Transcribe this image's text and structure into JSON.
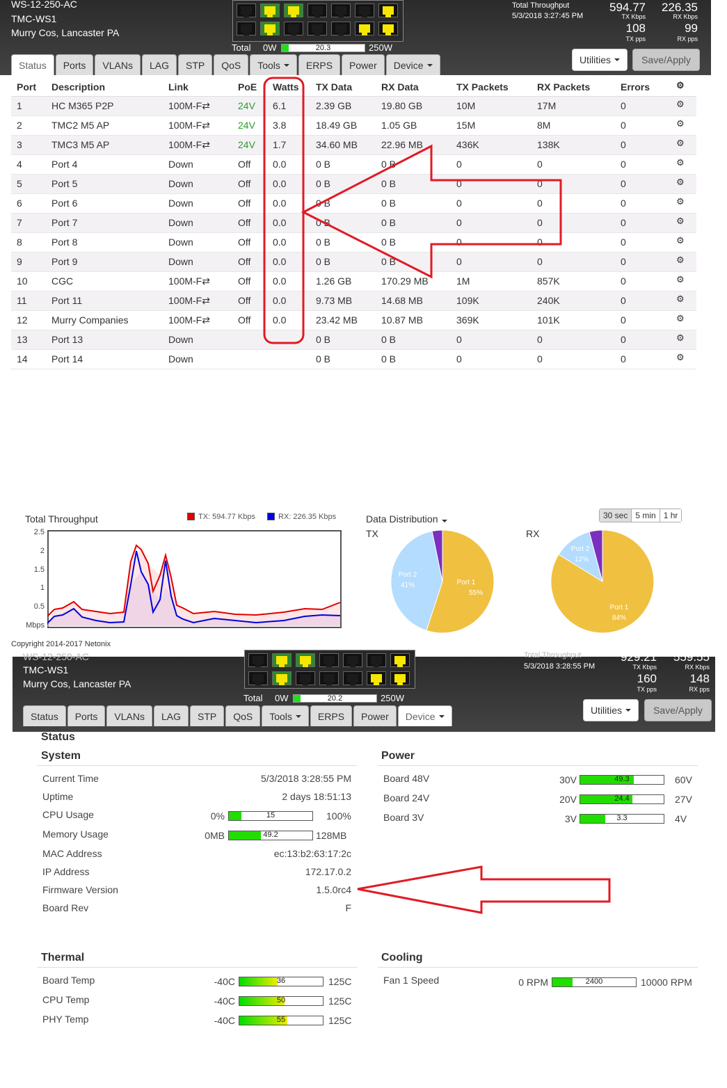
{
  "shot1": {
    "header": {
      "model": "WS-12-250-AC",
      "hostname": "TMC-WS1",
      "location": "Murry Cos, Lancaster PA",
      "total_label": "Total",
      "power_min": "0W",
      "power_value": "20.3",
      "power_fraction": 0.081,
      "power_max": "250W",
      "tp_title": "Total Throughput",
      "tp_time": "5/3/2018 3:27:45 PM",
      "tx_kbps": "594.77",
      "tx_kbps_label": "TX Kbps",
      "rx_kbps": "226.35",
      "rx_kbps_label": "RX Kbps",
      "tx_pps": "108",
      "tx_pps_label": "TX pps",
      "rx_pps": "99",
      "rx_pps_label": "RX pps"
    },
    "port_lights": {
      "top": [
        "off",
        "up",
        "up",
        "off",
        "off",
        "off",
        "up"
      ],
      "bottom": [
        "off",
        "up",
        "off",
        "off",
        "off",
        "up",
        "up"
      ]
    },
    "buttons": {
      "utilities": "Utilities",
      "save": "Save/Apply"
    },
    "tabs": [
      "Status",
      "Ports",
      "VLANs",
      "LAG",
      "STP",
      "QoS",
      "Tools",
      "ERPS",
      "Power",
      "Device"
    ],
    "columns": [
      "Port",
      "Description",
      "Link",
      "PoE",
      "Watts",
      "TX Data",
      "RX Data",
      "TX Packets",
      "RX Packets",
      "Errors"
    ],
    "rows": [
      [
        "1",
        "HC M365 P2P",
        "100M-F⇄",
        "24V",
        "6.1",
        "2.39 GB",
        "19.80 GB",
        "10M",
        "17M",
        "0"
      ],
      [
        "2",
        "TMC2 M5 AP",
        "100M-F⇄",
        "24V",
        "3.8",
        "18.49 GB",
        "1.05 GB",
        "15M",
        "8M",
        "0"
      ],
      [
        "3",
        "TMC3 M5 AP",
        "100M-F⇄",
        "24V",
        "1.7",
        "34.60 MB",
        "22.96 MB",
        "436K",
        "138K",
        "0"
      ],
      [
        "4",
        "Port 4",
        "Down",
        "Off",
        "0.0",
        "0 B",
        "0 B",
        "0",
        "0",
        "0"
      ],
      [
        "5",
        "Port 5",
        "Down",
        "Off",
        "0.0",
        "0 B",
        "0 B",
        "0",
        "0",
        "0"
      ],
      [
        "6",
        "Port 6",
        "Down",
        "Off",
        "0.0",
        "0 B",
        "0 B",
        "0",
        "0",
        "0"
      ],
      [
        "7",
        "Port 7",
        "Down",
        "Off",
        "0.0",
        "0 B",
        "0 B",
        "0",
        "0",
        "0"
      ],
      [
        "8",
        "Port 8",
        "Down",
        "Off",
        "0.0",
        "0 B",
        "0 B",
        "0",
        "0",
        "0"
      ],
      [
        "9",
        "Port 9",
        "Down",
        "Off",
        "0.0",
        "0 B",
        "0 B",
        "0",
        "0",
        "0"
      ],
      [
        "10",
        "CGC",
        "100M-F⇄",
        "Off",
        "0.0",
        "1.26 GB",
        "170.29 MB",
        "1M",
        "857K",
        "0"
      ],
      [
        "11",
        "Port 11",
        "100M-F⇄",
        "Off",
        "0.0",
        "9.73 MB",
        "14.68 MB",
        "109K",
        "240K",
        "0"
      ],
      [
        "12",
        "Murry Companies",
        "100M-F⇄",
        "Off",
        "0.0",
        "23.42 MB",
        "10.87 MB",
        "369K",
        "101K",
        "0"
      ],
      [
        "13",
        "Port 13",
        "Down",
        "",
        "",
        "0 B",
        "0 B",
        "0",
        "0",
        "0"
      ],
      [
        "14",
        "Port 14",
        "Down",
        "",
        "",
        "0 B",
        "0 B",
        "0",
        "0",
        "0"
      ]
    ],
    "throughput": {
      "title": "Total Throughput",
      "tx_legend": "TX: 594.77 Kbps",
      "rx_legend": "RX: 226.35 Kbps",
      "unit": "Mbps",
      "yticks": [
        "2.5",
        "2",
        "1.5",
        "1",
        "0.5"
      ],
      "tx_color": "#e00000",
      "rx_color": "#0000dd"
    },
    "distribution": {
      "title": "Data Distribution",
      "time_buttons": [
        "30 sec",
        "5 min",
        "1 hr"
      ],
      "tx_label": "TX",
      "rx_label": "RX"
    },
    "copyright": "Copyright 2014-2017 Netonix"
  },
  "shot2": {
    "header": {
      "model": "WS-12-250-AC",
      "hostname": "TMC-WS1",
      "location": "Murry Cos, Lancaster PA",
      "total_label": "Total",
      "power_min": "0W",
      "power_value": "20.2",
      "power_fraction": 0.081,
      "power_max": "250W",
      "tp_title": "Total Throughput",
      "tp_time": "5/3/2018 3:28:55 PM",
      "tx_kbps": "929.21",
      "tx_kbps_label": "TX Kbps",
      "rx_kbps": "559.55",
      "rx_kbps_label": "RX Kbps",
      "tx_pps": "160",
      "tx_pps_label": "TX pps",
      "rx_pps": "148",
      "rx_pps_label": "RX pps"
    },
    "port_lights": {
      "top": [
        "off",
        "up",
        "up",
        "off",
        "off",
        "off",
        "up"
      ],
      "bottom": [
        "off",
        "up",
        "off",
        "off",
        "off",
        "up",
        "up"
      ]
    },
    "buttons": {
      "utilities": "Utilities",
      "save": "Save/Apply"
    },
    "tabs": [
      "Status",
      "Ports",
      "VLANs",
      "LAG",
      "STP",
      "QoS",
      "Tools",
      "ERPS",
      "Power",
      "Device"
    ],
    "page_title": "Status",
    "system": {
      "title": "System",
      "current_time_label": "Current Time",
      "current_time": "5/3/2018 3:28:55 PM",
      "uptime_label": "Uptime",
      "uptime": "2 days 18:51:13",
      "cpu_label": "CPU Usage",
      "cpu_min": "0%",
      "cpu_val": "15",
      "cpu_fraction": 0.15,
      "cpu_max": "100%",
      "mem_label": "Memory Usage",
      "mem_min": "0MB",
      "mem_val": "49.2",
      "mem_fraction": 0.384,
      "mem_max": "128MB",
      "mac_label": "MAC Address",
      "mac": "ec:13:b2:63:17:2c",
      "ip_label": "IP Address",
      "ip": "172.17.0.2",
      "fw_label": "Firmware Version",
      "fw": "1.5.0rc4",
      "rev_label": "Board Rev",
      "rev": "F"
    },
    "power": {
      "title": "Power",
      "rows": [
        {
          "label": "Board 48V",
          "min": "30V",
          "val": "49.3",
          "fraction": 0.642,
          "max": "60V"
        },
        {
          "label": "Board 24V",
          "min": "20V",
          "val": "24.4",
          "fraction": 0.629,
          "max": "27V"
        },
        {
          "label": "Board 3V",
          "min": "3V",
          "val": "3.3",
          "fraction": 0.3,
          "max": "4V"
        }
      ]
    },
    "thermal": {
      "title": "Thermal",
      "rows": [
        {
          "label": "Board Temp",
          "min": "-40C",
          "val": "36",
          "fraction": 0.46,
          "max": "125C"
        },
        {
          "label": "CPU Temp",
          "min": "-40C",
          "val": "50",
          "fraction": 0.545,
          "max": "125C"
        },
        {
          "label": "PHY Temp",
          "min": "-40C",
          "val": "55",
          "fraction": 0.576,
          "max": "125C"
        }
      ]
    },
    "cooling": {
      "title": "Cooling",
      "fan_label": "Fan 1 Speed",
      "fan_min": "0 RPM",
      "fan_val": "2400",
      "fan_fraction": 0.24,
      "fan_max": "10000 RPM"
    }
  }
}
